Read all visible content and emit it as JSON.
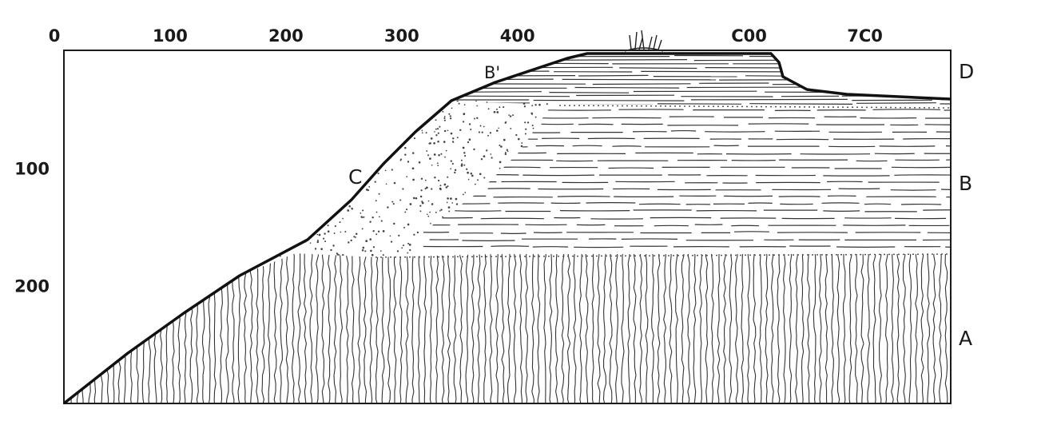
{
  "figure": {
    "top_axis": {
      "ticks": [
        {
          "value": 0,
          "label": "0"
        },
        {
          "value": 100,
          "label": "100"
        },
        {
          "value": 200,
          "label": "200"
        },
        {
          "value": 300,
          "label": "300"
        },
        {
          "value": 400,
          "label": "400"
        },
        {
          "value": 600,
          "label": "C00"
        },
        {
          "value": 700,
          "label": "7C0"
        }
      ],
      "range": [
        0,
        750
      ]
    },
    "left_axis": {
      "ticks": [
        {
          "value": 100,
          "label": "100"
        },
        {
          "value": 200,
          "label": "200"
        }
      ],
      "range": [
        0,
        300
      ]
    },
    "labels": {
      "slope": "C",
      "cap": "B'",
      "top_layer": "D",
      "middle_layer": "B",
      "base_layer": "A"
    },
    "colors": {
      "ink": "#1a1a1a",
      "paper": "#ffffff"
    }
  }
}
